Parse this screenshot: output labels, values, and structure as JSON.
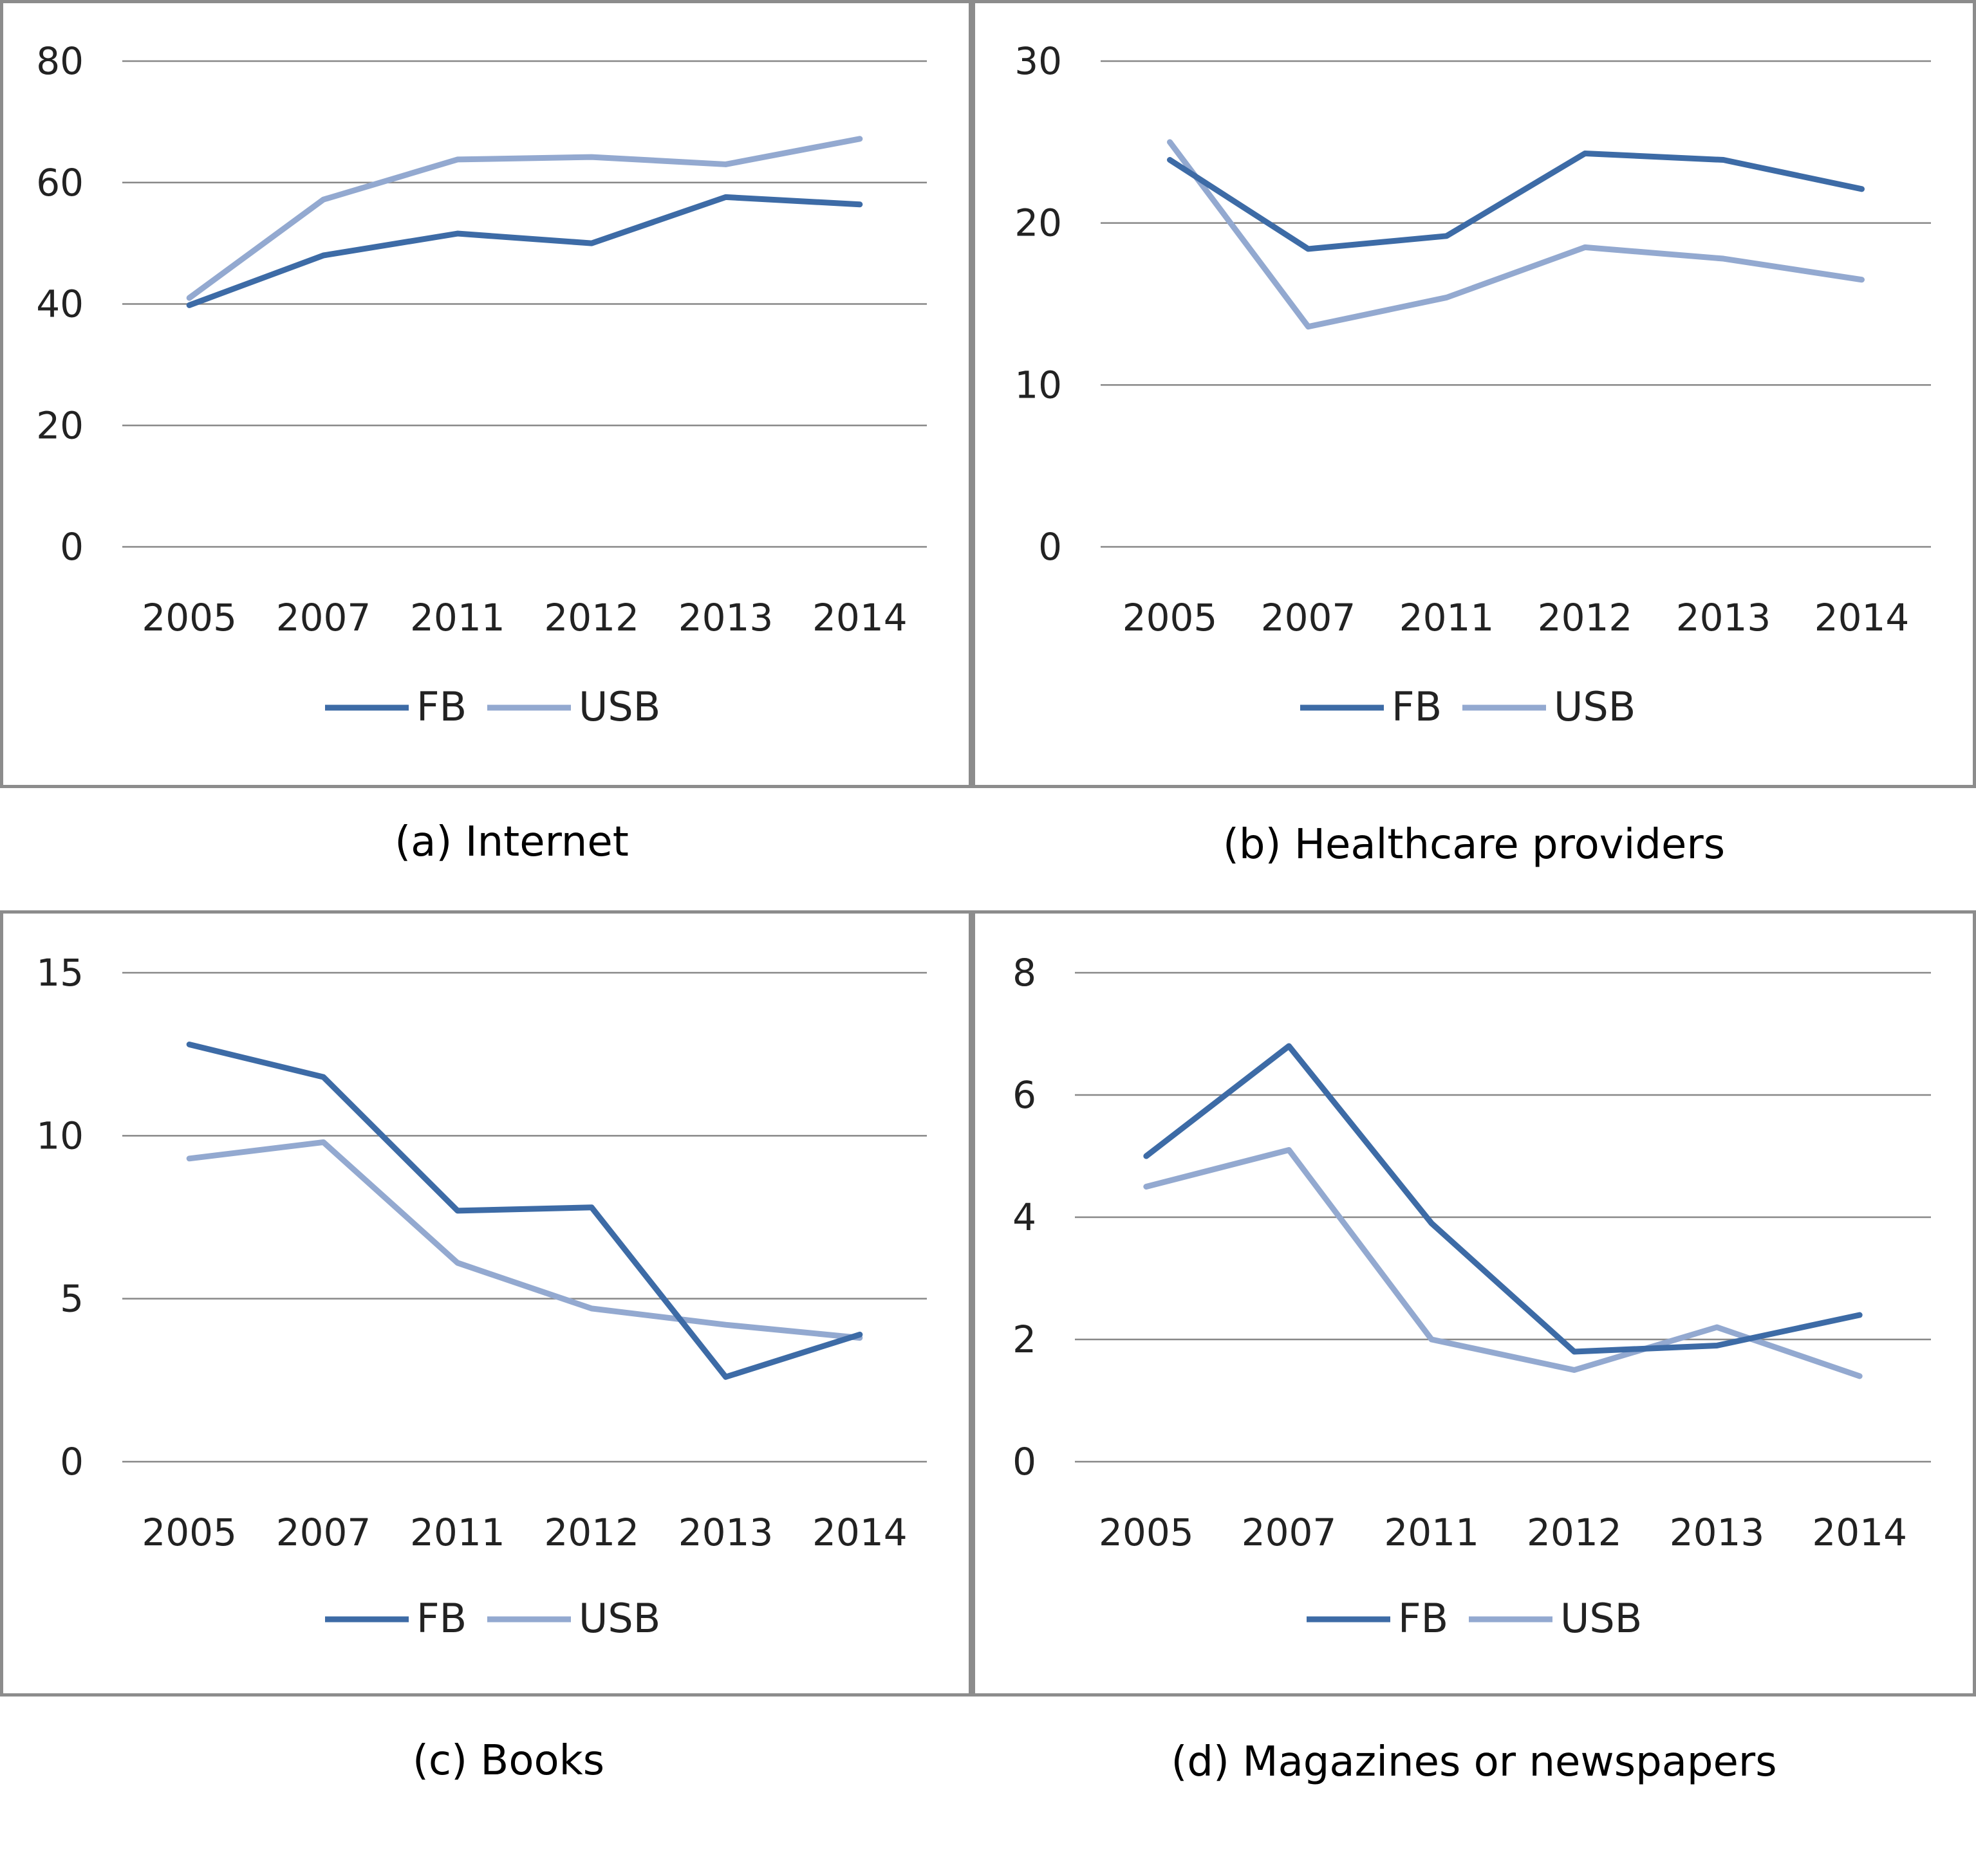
{
  "colors": {
    "FB": "#3d6ba6",
    "USB": "#93a9d0",
    "grid": "#888888"
  },
  "chart_data": [
    {
      "type": "line",
      "caption": "(a) Internet",
      "categories": [
        "2005",
        "2007",
        "2011",
        "2012",
        "2013",
        "2014"
      ],
      "ylim": [
        0,
        80
      ],
      "yticks": [
        "0",
        "20",
        "40",
        "60",
        "80"
      ],
      "grid": true,
      "legend_position": "bottom",
      "series": [
        {
          "name": "FB",
          "values": [
            39.8,
            48.0,
            51.6,
            50.0,
            57.6,
            56.4
          ]
        },
        {
          "name": "USB",
          "values": [
            41.0,
            57.2,
            63.8,
            64.2,
            63.0,
            67.2
          ]
        }
      ]
    },
    {
      "type": "line",
      "caption": "(b) Healthcare providers",
      "categories": [
        "2005",
        "2007",
        "2011",
        "2012",
        "2013",
        "2014"
      ],
      "ylim": [
        0,
        30
      ],
      "yticks": [
        "0",
        "10",
        "20",
        "30"
      ],
      "grid": true,
      "legend_position": "bottom",
      "series": [
        {
          "name": "FB",
          "values": [
            23.9,
            18.4,
            19.2,
            24.3,
            23.9,
            22.1
          ]
        },
        {
          "name": "USB",
          "values": [
            25.0,
            13.6,
            15.4,
            18.5,
            17.8,
            16.5
          ]
        }
      ]
    },
    {
      "type": "line",
      "caption": "(c) Books",
      "categories": [
        "2005",
        "2007",
        "2011",
        "2012",
        "2013",
        "2014"
      ],
      "ylim": [
        0,
        15
      ],
      "yticks": [
        "0",
        "5",
        "10",
        "15"
      ],
      "grid": true,
      "legend_position": "bottom",
      "series": [
        {
          "name": "FB",
          "values": [
            12.8,
            11.8,
            7.7,
            7.8,
            2.6,
            3.9
          ]
        },
        {
          "name": "USB",
          "values": [
            9.3,
            9.8,
            6.1,
            4.7,
            4.2,
            3.8
          ]
        }
      ]
    },
    {
      "type": "line",
      "caption": "(d) Magazines or newspapers",
      "categories": [
        "2005",
        "2007",
        "2011",
        "2012",
        "2013",
        "2014"
      ],
      "ylim": [
        0,
        8
      ],
      "yticks": [
        "0",
        "2",
        "4",
        "6",
        "8"
      ],
      "grid": true,
      "legend_position": "bottom",
      "series": [
        {
          "name": "FB",
          "values": [
            5.0,
            6.8,
            3.9,
            1.8,
            1.9,
            2.4
          ]
        },
        {
          "name": "USB",
          "values": [
            4.5,
            5.1,
            2.0,
            1.5,
            2.2,
            1.4
          ]
        }
      ]
    }
  ]
}
